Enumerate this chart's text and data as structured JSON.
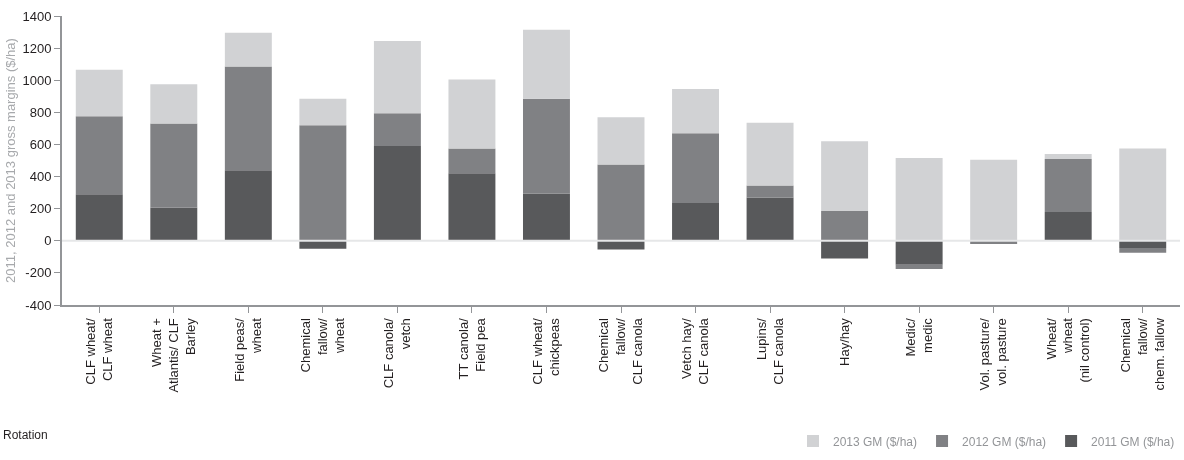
{
  "chart_data": {
    "type": "bar",
    "stacked": true,
    "xlabel": "Rotation",
    "ylabel": "2011, 2012 and 2013 gross margins ($/ha)",
    "categories": [
      "CLF wheat/\nCLF wheat",
      "Wheat +\nAtlantis/ CLF\nBarley",
      "Field peas/\nwheat",
      "Chemical\nfallow/\nwheat",
      "CLF canola/\nvetch",
      "TT canola/\nField pea",
      "CLF wheat/\nchickpeas",
      "Chemical\nfallow/\nCLF canola",
      "Vetch hay/\nCLF canola",
      "Lupins/\nCLF canola",
      "Hay/hay",
      "Medic/\nmedic",
      "Vol. pasture/\nvol. pasture",
      "Wheat/\nwheat\n(nil control)",
      "Chemical\nfallow/\nchem. fallow"
    ],
    "series": [
      {
        "name": "2011 GM ($/ha)",
        "color": "#58595b",
        "values": [
          290,
          205,
          440,
          -50,
          590,
          420,
          295,
          -55,
          235,
          270,
          -110,
          -150,
          0,
          180,
          -45
        ]
      },
      {
        "name": "2012 GM ($/ha)",
        "color": "#808184",
        "values": [
          485,
          525,
          645,
          720,
          205,
          155,
          590,
          475,
          435,
          75,
          185,
          -25,
          -20,
          330,
          -30
        ]
      },
      {
        "name": "2013 GM ($/ha)",
        "color": "#d1d2d4",
        "values": [
          290,
          245,
          210,
          165,
          450,
          430,
          430,
          295,
          275,
          390,
          435,
          515,
          505,
          30,
          575
        ]
      }
    ],
    "ylim": [
      -400,
      1400
    ],
    "yticks": [
      -400,
      -200,
      0,
      200,
      400,
      600,
      800,
      1000,
      1200,
      1400
    ],
    "ref_lines": [
      {
        "axis": "y",
        "value": 0,
        "color": "#e6e7e8"
      }
    ],
    "legend": "bottom right"
  }
}
